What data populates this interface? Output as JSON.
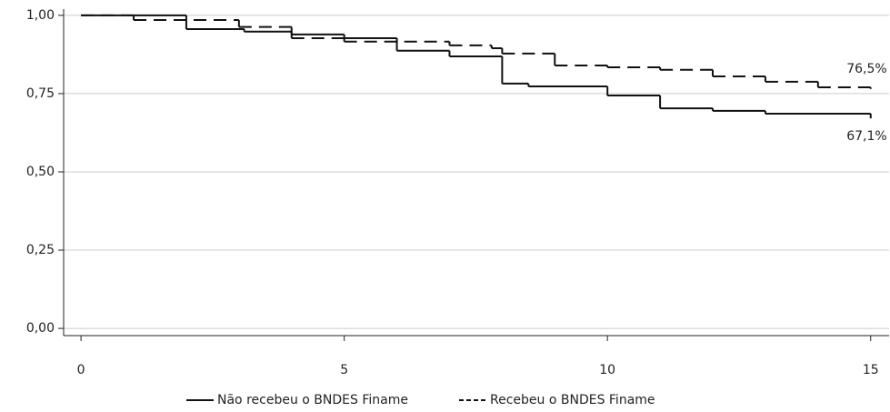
{
  "chart_data": {
    "type": "step",
    "xlim": [
      -0.33,
      15.35
    ],
    "xticks": [
      0,
      5,
      10,
      15
    ],
    "ylim": [
      -0.023,
      1.02
    ],
    "yticks": [
      {
        "value": 0,
        "label": "0,00"
      },
      {
        "value": 0.25,
        "label": "0,25"
      },
      {
        "value": 0.5,
        "label": "0,50"
      },
      {
        "value": 0.75,
        "label": "0,75"
      },
      {
        "value": 1,
        "label": "1,00"
      }
    ],
    "grid": true,
    "legend": "bottom",
    "series": [
      {
        "name": "Não recebeu o BNDES Finame",
        "color": "#111111",
        "dash": "solid",
        "x": [
          0,
          2,
          3.1,
          4,
          5,
          6,
          7,
          8,
          8.5,
          10,
          11,
          12,
          13,
          15
        ],
        "values": [
          1,
          0.956,
          0.948,
          0.939,
          0.927,
          0.887,
          0.869,
          0.782,
          0.773,
          0.744,
          0.703,
          0.695,
          0.686,
          0.671
        ],
        "value_labels": [
          null,
          null,
          null,
          null,
          null,
          null,
          null,
          null,
          null,
          null,
          null,
          null,
          null,
          "67,1%"
        ]
      },
      {
        "name": "Recebeu o BNDES Finame",
        "color": "#111111",
        "dash": "dashed",
        "x": [
          0,
          1,
          3,
          4,
          5,
          7,
          7.8,
          8,
          9,
          10,
          11,
          12,
          13,
          14,
          15
        ],
        "values": [
          1,
          0.985,
          0.963,
          0.927,
          0.916,
          0.904,
          0.895,
          0.878,
          0.84,
          0.834,
          0.826,
          0.805,
          0.788,
          0.77,
          0.765
        ],
        "value_labels": [
          null,
          null,
          null,
          null,
          null,
          null,
          null,
          null,
          null,
          null,
          null,
          null,
          null,
          null,
          "76,5%"
        ]
      }
    ]
  }
}
